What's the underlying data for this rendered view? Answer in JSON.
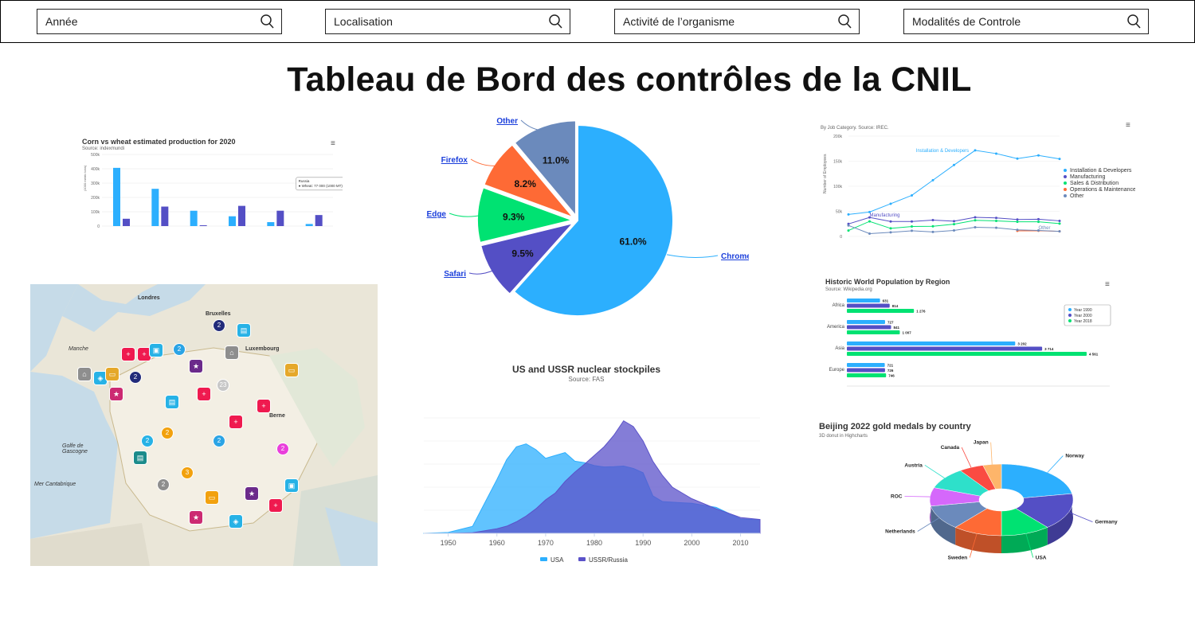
{
  "filters": [
    {
      "label": "Année"
    },
    {
      "label": "Localisation"
    },
    {
      "label": "Activité de l’organisme"
    },
    {
      "label": "Modalités de Controle"
    }
  ],
  "page_title": "Tableau de Bord des contrôles de la CNIL",
  "colors": {
    "blue": "#2caffe",
    "purple": "#544fc5",
    "green": "#00e272",
    "orange": "#fe6a35",
    "slate": "#6b8abc",
    "pink": "#d568fb",
    "teal": "#2ee0ca",
    "red": "#fa4b42",
    "yellow": "#feb56a",
    "darkpurple": "#544fc5"
  },
  "chart_data": [
    {
      "type": "bar",
      "title": "Corn vs wheat estimated production for 2020",
      "subtitle": "Source: indexmundi",
      "menu": "≡",
      "categories": [
        "USA",
        "China",
        "Brazil",
        "EU",
        "India",
        "Russia"
      ],
      "series": [
        {
          "name": "Corn",
          "values": [
            406292,
            260000,
            107000,
            68300,
            27500,
            14500
          ]
        },
        {
          "name": "Wheat",
          "values": [
            51086,
            136000,
            5500,
            141000,
            107180,
            77000
          ]
        }
      ],
      "ylim": [
        0,
        500000
      ],
      "yticks": [
        "0",
        "100k",
        "200k",
        "300k",
        "400k",
        "500k"
      ],
      "tooltip": {
        "title": "Russia",
        "text": "● Wheat: 77 000 (1000 MT)"
      }
    },
    {
      "type": "pie",
      "slices": [
        {
          "name": "Chrome",
          "value": 61.0,
          "label": "61.0%"
        },
        {
          "name": "Safari",
          "value": 9.5,
          "label": "9.5%"
        },
        {
          "name": "Edge",
          "value": 9.3,
          "label": "9.3%"
        },
        {
          "name": "Firefox",
          "value": 8.2,
          "label": "8.2%"
        },
        {
          "name": "Other",
          "value": 11.0,
          "label": "11.0%"
        }
      ]
    },
    {
      "type": "line",
      "subtitle": "By Job Category. Source: IREC.",
      "menu": "≡",
      "x": [
        2010,
        2011,
        2012,
        2013,
        2014,
        2015,
        2016,
        2017,
        2018,
        2019,
        2020
      ],
      "ylim": [
        0,
        200000
      ],
      "yticks": [
        "0",
        "50k",
        "100k",
        "150k",
        "200k"
      ],
      "ylabel": "Number of Employees",
      "series": [
        {
          "name": "Installation & Developers",
          "values": [
            43934,
            48656,
            65165,
            81827,
            112143,
            142383,
            171533,
            165174,
            155157,
            161454,
            154610
          ]
        },
        {
          "name": "Manufacturing",
          "values": [
            24916,
            37941,
            29742,
            29851,
            32490,
            30282,
            38121,
            36885,
            33726,
            34243,
            31050
          ]
        },
        {
          "name": "Sales & Distribution",
          "values": [
            11744,
            30000,
            16005,
            19771,
            20185,
            24377,
            32147,
            30912,
            29243,
            29213,
            25663
          ]
        },
        {
          "name": "Operations & Maintenance",
          "values": [
            null,
            null,
            null,
            null,
            null,
            null,
            null,
            null,
            11164,
            11218,
            10077
          ]
        },
        {
          "name": "Other",
          "values": [
            21908,
            5548,
            8105,
            11248,
            8989,
            11816,
            18274,
            17300,
            13053,
            11906,
            10073
          ]
        }
      ],
      "annotations": [
        "Installation & Developers",
        "Manufacturing",
        "Other"
      ]
    },
    {
      "type": "bar",
      "title": "Historic World Population by Region",
      "subtitle": "Source: Wikipedia.org",
      "menu": "≡",
      "orientation": "horizontal",
      "categories": [
        "Africa",
        "America",
        "Asia",
        "Europe"
      ],
      "series": [
        {
          "name": "Year 1990",
          "values": [
            631,
            727,
            3202,
            721
          ],
          "labels": [
            "631",
            "727",
            "3 202",
            "721"
          ]
        },
        {
          "name": "Year 2000",
          "values": [
            814,
            841,
            3714,
            726
          ],
          "labels": [
            "814",
            "841",
            "3 714",
            "726"
          ]
        },
        {
          "name": "Year 2018",
          "values": [
            1276,
            1007,
            4561,
            746
          ],
          "labels": [
            "1 276",
            "1 007",
            "4 561",
            "746"
          ]
        }
      ],
      "xlim": [
        0,
        5000
      ]
    },
    {
      "type": "area",
      "title": "US and USSR nuclear stockpiles",
      "subtitle": "Source: FAS",
      "x": [
        1945,
        1950,
        1955,
        1960,
        1962,
        1964,
        1966,
        1968,
        1970,
        1972,
        1974,
        1976,
        1978,
        1980,
        1982,
        1984,
        1986,
        1988,
        1990,
        1992,
        1994,
        1996,
        1998,
        2000,
        2005,
        2010,
        2014
      ],
      "xticks": [
        "1950",
        "1960",
        "1970",
        "1980",
        "1990",
        "2000",
        "2010"
      ],
      "series": [
        {
          "name": "USA",
          "values": [
            2,
            300,
            2422,
            18638,
            25540,
            30000,
            31000,
            29000,
            26000,
            27000,
            28000,
            25000,
            24500,
            23500,
            23000,
            23100,
            23300,
            22500,
            21000,
            13000,
            11000,
            10800,
            10600,
            10400,
            9000,
            5000,
            4700
          ]
        },
        {
          "name": "USSR/Russia",
          "values": [
            0,
            5,
            200,
            1605,
            2471,
            4000,
            6000,
            8500,
            11600,
            14000,
            18000,
            21200,
            24000,
            27000,
            30000,
            34000,
            39000,
            37000,
            32000,
            25000,
            20000,
            16000,
            14000,
            12000,
            8500,
            5500,
            4800
          ]
        }
      ]
    },
    {
      "type": "pie",
      "title": "Beijing 2022 gold medals by country",
      "subtitle": "3D donut in Highcharts",
      "slices": [
        {
          "name": "Norway",
          "value": 16
        },
        {
          "name": "Germany",
          "value": 12
        },
        {
          "name": "USA",
          "value": 8
        },
        {
          "name": "Sweden",
          "value": 8
        },
        {
          "name": "Netherlands",
          "value": 8
        },
        {
          "name": "ROC",
          "value": 6
        },
        {
          "name": "Austria",
          "value": 7
        },
        {
          "name": "Canada",
          "value": 4
        },
        {
          "name": "Japan",
          "value": 3
        }
      ]
    }
  ],
  "map": {
    "labels": [
      {
        "t": "Londres"
      },
      {
        "t": "Bruxelles"
      },
      {
        "t": "Luxembourg"
      },
      {
        "t": "Berne"
      },
      {
        "t": "Golfe de Gascogne"
      },
      {
        "t": "Mer Cantabrique"
      },
      {
        "t": "Manche"
      }
    ],
    "markers": [
      {
        "c": "#ef1a4f",
        "s": "+"
      },
      {
        "c": "#ef1a4f",
        "s": "+"
      },
      {
        "c": "#2ba4e5",
        "s": "2"
      },
      {
        "c": "#27b2e6",
        "s": "▣"
      },
      {
        "c": "#8e8e8e",
        "s": "⌂"
      },
      {
        "c": "#e5a82a",
        "s": "▭"
      },
      {
        "c": "#27b2e6",
        "s": "▤"
      },
      {
        "c": "#222b7a",
        "s": "2"
      },
      {
        "c": "#6b2a8b",
        "s": "★"
      },
      {
        "c": "#cc2a72",
        "s": "★"
      },
      {
        "c": "#27b2e6",
        "s": "◈"
      },
      {
        "c": "#ef1a4f",
        "s": "+"
      },
      {
        "c": "#27b2e6",
        "s": "2"
      },
      {
        "c": "#f2a10e",
        "s": "2"
      },
      {
        "c": "#f2a10e",
        "s": "3"
      },
      {
        "c": "#8e8e8e",
        "s": "2"
      },
      {
        "c": "#e93fdb",
        "s": "2"
      },
      {
        "c": "#1b8b8b",
        "s": "▤"
      },
      {
        "c": "#f2a10e",
        "s": "▭"
      },
      {
        "c": "#c7c7c7",
        "s": "23"
      }
    ]
  }
}
